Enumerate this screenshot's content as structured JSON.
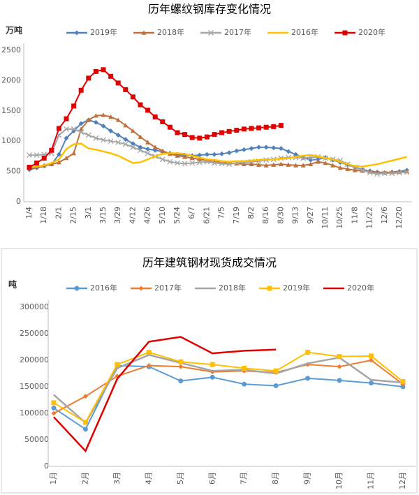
{
  "chart_data": [
    {
      "type": "line",
      "title": "历年螺纹钢库存变化情况",
      "y_label": "万吨",
      "categories": [
        "1/4",
        null,
        "1/18",
        null,
        "2/1",
        null,
        "2/15",
        null,
        "3/1",
        null,
        "3/15",
        null,
        "3/29",
        null,
        "4/12",
        null,
        "4/26",
        null,
        "5/10",
        null,
        "5/24",
        null,
        "6/7",
        null,
        "6/21",
        null,
        "7/5",
        null,
        "7/19",
        null,
        "8/2",
        null,
        "8/16",
        null,
        "8/30",
        null,
        "9/13",
        null,
        "9/27",
        null,
        "10/11",
        null,
        "10/25",
        null,
        "11/8",
        null,
        "11/22",
        null,
        "12/6",
        null,
        "12/20",
        null
      ],
      "series": [
        {
          "name": "2019年",
          "color": "#4f81bd",
          "marker": "diamond",
          "values": [
            530,
            560,
            590,
            620,
            780,
            1050,
            1170,
            1290,
            1350,
            1310,
            1250,
            1170,
            1100,
            1030,
            960,
            900,
            870,
            850,
            830,
            800,
            780,
            770,
            760,
            770,
            780,
            780,
            790,
            810,
            840,
            860,
            880,
            900,
            900,
            890,
            880,
            830,
            780,
            730,
            690,
            700,
            730,
            690,
            650,
            610,
            570,
            530,
            510,
            490,
            480,
            490,
            500,
            520
          ]
        },
        {
          "name": "2018年",
          "color": "#c0703a",
          "marker": "triangle",
          "values": [
            560,
            580,
            600,
            620,
            650,
            720,
            800,
            1200,
            1350,
            1420,
            1430,
            1400,
            1350,
            1260,
            1170,
            1070,
            980,
            900,
            840,
            790,
            760,
            740,
            720,
            700,
            680,
            670,
            650,
            640,
            630,
            620,
            620,
            610,
            600,
            610,
            620,
            610,
            600,
            600,
            620,
            660,
            640,
            600,
            560,
            540,
            520,
            510,
            500,
            480,
            480,
            490,
            490,
            500
          ]
        },
        {
          "name": "2017年",
          "color": "#a5a5a5",
          "marker": "x",
          "values": [
            770,
            770,
            780,
            800,
            1100,
            1200,
            1200,
            1150,
            1100,
            1050,
            1020,
            1000,
            980,
            950,
            900,
            850,
            800,
            750,
            700,
            660,
            640,
            630,
            640,
            650,
            660,
            640,
            630,
            620,
            640,
            650,
            660,
            670,
            690,
            700,
            720,
            730,
            730,
            720,
            730,
            740,
            720,
            700,
            680,
            620,
            570,
            520,
            480,
            460,
            470,
            470,
            480,
            490
          ]
        },
        {
          "name": "2016年",
          "color": "#ffc000",
          "marker": "none",
          "values": [
            570,
            580,
            600,
            640,
            700,
            870,
            950,
            960,
            880,
            860,
            830,
            800,
            760,
            700,
            640,
            650,
            700,
            750,
            790,
            800,
            800,
            790,
            760,
            730,
            700,
            690,
            670,
            660,
            670,
            670,
            680,
            690,
            700,
            700,
            710,
            720,
            740,
            760,
            770,
            750,
            720,
            700,
            660,
            620,
            590,
            580,
            600,
            620,
            650,
            680,
            710,
            740
          ]
        },
        {
          "name": "2020年",
          "color": "#e00000",
          "marker": "square",
          "values": [
            570,
            640,
            720,
            850,
            1210,
            1370,
            1580,
            1840,
            2040,
            2150,
            2180,
            2070,
            1960,
            1850,
            1730,
            1600,
            1510,
            1400,
            1320,
            1230,
            1140,
            1110,
            1060,
            1050,
            1070,
            1110,
            1140,
            1160,
            1180,
            1200,
            1210,
            1220,
            1230,
            1240,
            1260,
            null,
            null,
            null,
            null,
            null,
            null,
            null,
            null,
            null,
            null,
            null,
            null,
            null,
            null,
            null,
            null,
            null
          ]
        }
      ],
      "ylim": [
        0,
        2500
      ],
      "yticks": [
        0,
        500,
        1000,
        1500,
        2000,
        2500
      ],
      "grid": false,
      "legend": "top"
    },
    {
      "type": "line",
      "title": "历年建筑钢材现货成交情况",
      "y_label": "吨",
      "categories": [
        "1月",
        "2月",
        "3月",
        "4月",
        "5月",
        "6月",
        "7月",
        "8月",
        "9月",
        "10月",
        "11月",
        "12月"
      ],
      "series": [
        {
          "name": "2016年",
          "color": "#5b9bd5",
          "marker": "circle",
          "values": [
            110000,
            70000,
            190000,
            188000,
            161000,
            168000,
            155000,
            152000,
            166000,
            162000,
            157000,
            150000
          ]
        },
        {
          "name": "2017年",
          "color": "#ed7d31",
          "marker": "diamond",
          "values": [
            100000,
            132000,
            170000,
            190000,
            188000,
            178000,
            180000,
            177000,
            192000,
            188000,
            200000,
            155000
          ]
        },
        {
          "name": "2018年",
          "color": "#a5a5a5",
          "marker": "none",
          "values": [
            135000,
            82000,
            185000,
            210000,
            195000,
            180000,
            182000,
            175000,
            194000,
            205000,
            163000,
            158000
          ]
        },
        {
          "name": "2019年",
          "color": "#ffc000",
          "marker": "square",
          "values": [
            120000,
            83000,
            192000,
            215000,
            197000,
            192000,
            185000,
            180000,
            215000,
            207000,
            208000,
            160000
          ]
        },
        {
          "name": "2020年",
          "color": "#e00000",
          "marker": "none",
          "values": [
            93000,
            29000,
            165000,
            235000,
            244000,
            213000,
            218000,
            220000,
            null,
            null,
            null,
            null
          ]
        }
      ],
      "ylim": [
        0,
        300000
      ],
      "yticks": [
        0,
        50000,
        100000,
        150000,
        200000,
        250000,
        300000
      ],
      "grid": false,
      "legend": "top"
    }
  ]
}
